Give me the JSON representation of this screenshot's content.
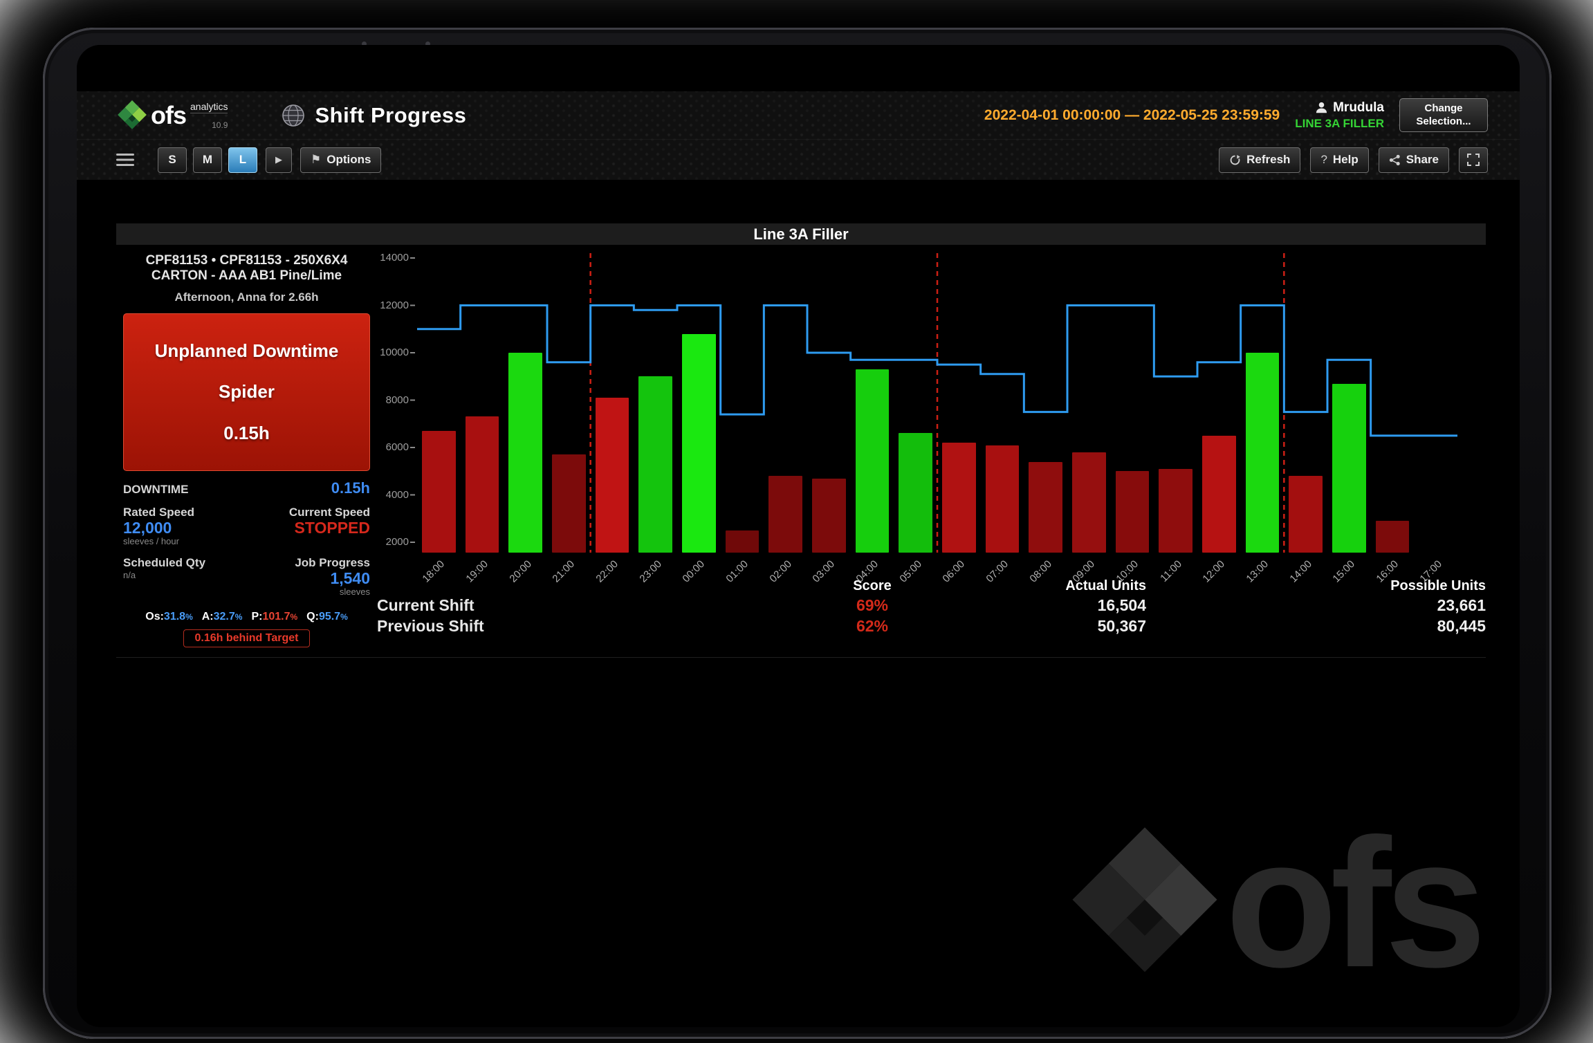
{
  "header": {
    "logo": {
      "brand": "ofs",
      "sub": "analytics",
      "version": "10.9"
    },
    "title": "Shift Progress",
    "date_range": "2022-04-01 00:00:00 — 2022-05-25 23:59:59",
    "user_name": "Mrudula",
    "line_context": "LINE 3A FILLER",
    "change_selection_label": "Change Selection..."
  },
  "toolbar": {
    "sizes": [
      "S",
      "M",
      "L"
    ],
    "active_size": "L",
    "play_glyph": "▶",
    "flag_glyph": "⚑",
    "options_label": "Options",
    "refresh_label": "Refresh",
    "help_glyph": "?",
    "help_label": "Help",
    "share_label": "Share"
  },
  "panel": {
    "title": "Line 3A Filler",
    "job_line1": "CPF81153 • CPF81153 - 250X6X4",
    "job_line2": "CARTON - AAA AB1 Pine/Lime",
    "shift_info": "Afternoon, Anna for 2.66h",
    "downtime_box": {
      "type": "Unplanned Downtime",
      "reason": "Spider",
      "duration": "0.15h"
    },
    "downtime_label": "DOWNTIME",
    "downtime_value": "0.15h",
    "rated_speed_label": "Rated Speed",
    "rated_speed_value": "12,000",
    "rated_speed_unit": "sleeves / hour",
    "current_speed_label": "Current Speed",
    "current_speed_value": "STOPPED",
    "scheduled_qty_label": "Scheduled Qty",
    "scheduled_qty_value": "n/a",
    "job_progress_label": "Job Progress",
    "job_progress_value": "1,540",
    "job_progress_unit": "sleeves",
    "oapq": [
      {
        "key": "os",
        "label": "Os:",
        "value": "31.8",
        "color": "#4a9df8"
      },
      {
        "key": "a",
        "label": "A:",
        "value": "32.7",
        "color": "#4a9df8"
      },
      {
        "key": "p",
        "label": "P:",
        "value": "101.7",
        "color": "#e84433"
      },
      {
        "key": "q",
        "label": "Q:",
        "value": "95.7",
        "color": "#4a9df8"
      }
    ],
    "behind_target": "0.16h behind Target"
  },
  "summary": {
    "columns": [
      "Score",
      "Actual Units",
      "Possible Units"
    ],
    "rows": [
      {
        "label": "Current Shift",
        "score": "69%",
        "actual": "16,504",
        "possible": "23,661"
      },
      {
        "label": "Previous Shift",
        "score": "62%",
        "actual": "50,367",
        "possible": "80,445"
      }
    ]
  },
  "watermark": {
    "brand": "ofs"
  },
  "chart_data": {
    "type": "bar",
    "title": "Line 3A Filler",
    "ylim": [
      2000,
      14000
    ],
    "yticks": [
      14000,
      12000,
      10000,
      8000,
      6000,
      4000,
      2000
    ],
    "categories": [
      "18:00",
      "19:00",
      "20:00",
      "21:00",
      "22:00",
      "23:00",
      "00:00",
      "01:00",
      "02:00",
      "03:00",
      "04:00",
      "05:00",
      "06:00",
      "07:00",
      "08:00",
      "09:00",
      "10:00",
      "11:00",
      "12:00",
      "13:00",
      "14:00",
      "15:00",
      "16:00",
      "17:00"
    ],
    "bars": {
      "values": [
        6700,
        7300,
        10000,
        5700,
        8100,
        9000,
        10800,
        2500,
        4800,
        4700,
        9300,
        6600,
        6200,
        6100,
        5400,
        5800,
        5000,
        5100,
        6500,
        10000,
        4800,
        8700,
        2900,
        0
      ],
      "colors": [
        "#a81010",
        "#a81010",
        "#1bd90f",
        "#7c0b0b",
        "#c01414",
        "#14c40d",
        "#1ae810",
        "#700909",
        "#7c0b0b",
        "#7c0b0b",
        "#16ce0d",
        "#13bd0c",
        "#b01212",
        "#a81010",
        "#8f0d0d",
        "#960f0f",
        "#870c0c",
        "#8f0d0d",
        "#b61212",
        "#1bd90f",
        "#a30f0f",
        "#16d10d",
        "#7c0b0b",
        "#000000"
      ]
    },
    "target_line": {
      "color": "#2e9bf0",
      "values": [
        11000,
        12000,
        12000,
        9600,
        12000,
        11800,
        12000,
        7400,
        12000,
        10000,
        9700,
        9700,
        9500,
        9100,
        7500,
        12000,
        12000,
        9000,
        9600,
        12000,
        7500,
        9700,
        6500,
        6500
      ]
    },
    "shift_boundaries": [
      "22:00",
      "06:00",
      "14:00"
    ],
    "shift_boundaries_at": [
      4,
      12,
      20
    ],
    "grid": false,
    "legend": "none"
  }
}
